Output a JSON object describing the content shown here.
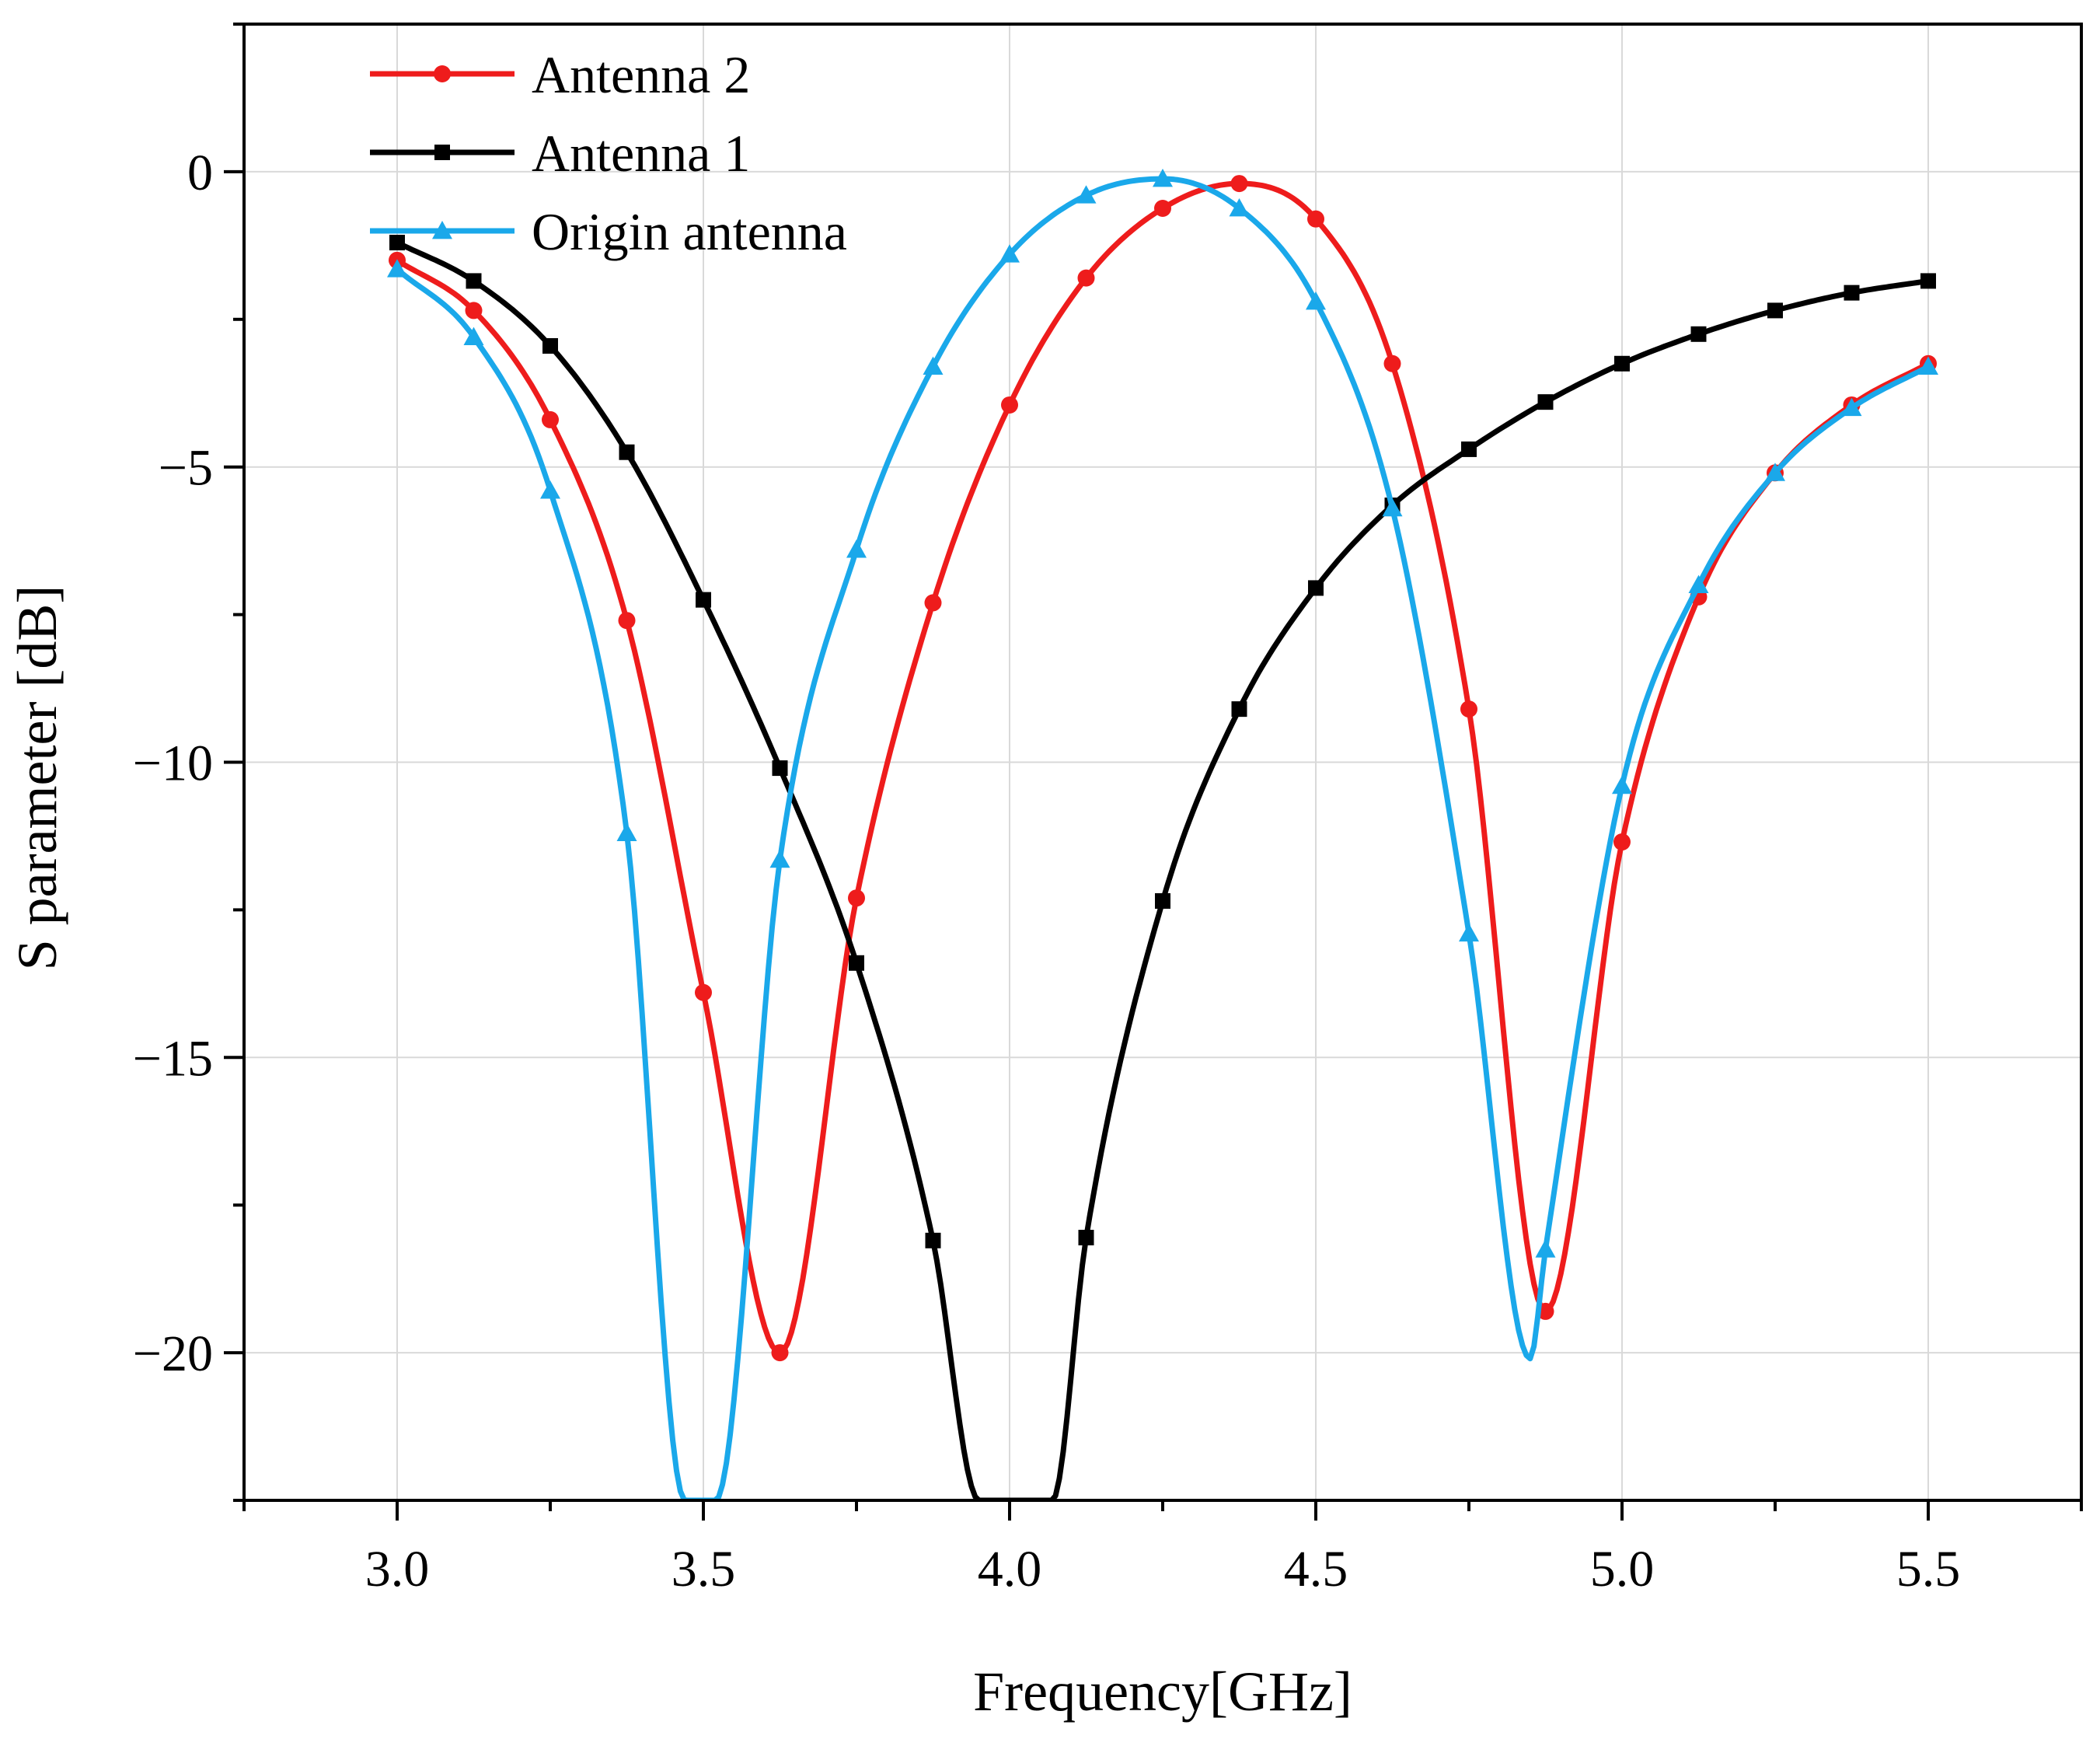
{
  "chart_data": {
    "type": "line",
    "title": "",
    "xlabel": "Frequency[GHz]",
    "ylabel": "S parameter [dB]",
    "xlim": [
      2.75,
      5.75
    ],
    "ylim": [
      -22.5,
      2.5
    ],
    "xticks": [
      3.0,
      3.5,
      4.0,
      4.5,
      5.0,
      5.5
    ],
    "xtick_labels": [
      "3.0",
      "3.5",
      "4.0",
      "4.5",
      "5.0",
      "5.5"
    ],
    "yticks": [
      0,
      -5,
      -10,
      -15,
      -20
    ],
    "ytick_labels": [
      "0",
      "−5",
      "−10",
      "−15",
      "−20"
    ],
    "grid": true,
    "legend_position": "top-left",
    "series": [
      {
        "name": "Antenna 2",
        "color": "#ee1c1c",
        "marker": "circle",
        "x": [
          3.0,
          3.125,
          3.25,
          3.375,
          3.5,
          3.625,
          3.75,
          3.875,
          4.0,
          4.125,
          4.25,
          4.375,
          4.5,
          4.625,
          4.75,
          4.875,
          5.0,
          5.125,
          5.25,
          5.375,
          5.5
        ],
        "y": [
          -1.5,
          -2.35,
          -4.2,
          -7.6,
          -13.9,
          -20.0,
          -12.3,
          -7.3,
          -3.95,
          -1.8,
          -0.62,
          -0.2,
          -0.8,
          -3.25,
          -9.1,
          -19.3,
          -11.35,
          -7.2,
          -5.1,
          -3.95,
          -3.25
        ],
        "marker_x": [
          3.0,
          3.125,
          3.25,
          3.375,
          3.5,
          3.625,
          3.75,
          3.875,
          4.0,
          4.125,
          4.25,
          4.375,
          4.5,
          4.625,
          4.75,
          4.875,
          5.0,
          5.125,
          5.25,
          5.375,
          5.5
        ]
      },
      {
        "name": "Antenna 1",
        "color": "#000000",
        "marker": "square",
        "x": [
          3.0,
          3.125,
          3.25,
          3.375,
          3.5,
          3.625,
          3.75,
          3.875,
          3.95,
          4.07,
          4.125,
          4.25,
          4.375,
          4.5,
          4.625,
          4.75,
          4.875,
          5.0,
          5.125,
          5.25,
          5.375,
          5.5
        ],
        "y": [
          -1.2,
          -1.85,
          -2.95,
          -4.75,
          -7.25,
          -10.1,
          -13.4,
          -18.1,
          -22.5,
          -22.5,
          -18.05,
          -12.35,
          -9.1,
          -7.05,
          -5.65,
          -4.7,
          -3.9,
          -3.25,
          -2.75,
          -2.35,
          -2.05,
          -1.85
        ],
        "marker_x": [
          3.0,
          3.125,
          3.25,
          3.375,
          3.5,
          3.625,
          3.75,
          3.875,
          4.125,
          4.25,
          4.375,
          4.5,
          4.625,
          4.75,
          4.875,
          5.0,
          5.125,
          5.25,
          5.375,
          5.5
        ]
      },
      {
        "name": "Origin antenna",
        "color": "#1aa8ea",
        "marker": "triangle",
        "x": [
          3.0,
          3.125,
          3.25,
          3.375,
          3.47,
          3.52,
          3.625,
          3.75,
          3.875,
          4.0,
          4.125,
          4.25,
          4.375,
          4.5,
          4.625,
          4.75,
          4.85,
          4.875,
          5.0,
          5.125,
          5.25,
          5.375,
          5.5
        ],
        "y": [
          -1.65,
          -2.8,
          -5.4,
          -11.2,
          -22.5,
          -22.5,
          -11.65,
          -6.4,
          -3.3,
          -1.4,
          -0.4,
          -0.12,
          -0.62,
          -2.2,
          -5.7,
          -12.9,
          -20.1,
          -18.25,
          -10.4,
          -7.0,
          -5.1,
          -4.0,
          -3.3
        ],
        "marker_x": [
          3.0,
          3.125,
          3.25,
          3.375,
          3.625,
          3.75,
          3.875,
          4.0,
          4.125,
          4.25,
          4.375,
          4.5,
          4.625,
          4.75,
          4.875,
          5.0,
          5.125,
          5.25,
          5.375,
          5.5
        ]
      }
    ]
  }
}
